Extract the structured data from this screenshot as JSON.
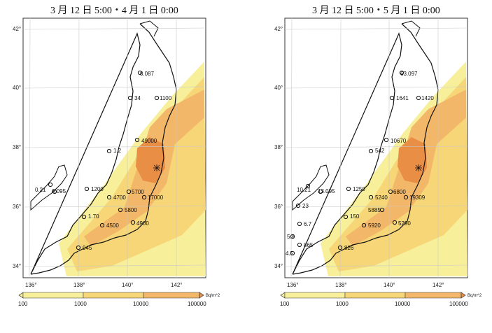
{
  "colors": {
    "c100": "#f7ef9a",
    "c1000": "#f6d677",
    "c10000": "#f2b768",
    "c100000": "#e98e45",
    "land": "#ffffff",
    "outline": "#111111",
    "grid": "#c9c9c9",
    "sea": "#ffffff"
  },
  "axes": {
    "lat_labels": [
      "42°",
      "40°",
      "38°",
      "36°",
      "34°"
    ],
    "lon_labels": [
      "136°",
      "138°",
      "140°",
      "142°"
    ]
  },
  "colorbar": {
    "ticks": [
      "100",
      "1000",
      "10000",
      "100000"
    ],
    "unit": "Bq/m^2"
  },
  "panels": [
    {
      "title": "3 月 12 日 5:00・4 月 1 日 0:00",
      "sites": [
        "0.087",
        "34",
        "1100",
        "1.2",
        "49000",
        "0.21",
        "0.095",
        "1200",
        "4700",
        "5700",
        "17000",
        "5800",
        "1.70",
        "4500",
        "4900",
        "945"
      ]
    },
    {
      "title": "3 月 12 日 5:00・5 月 1 日 0:00",
      "sites": [
        "63.097",
        "1641",
        "1420",
        "10670",
        "542",
        "10.21",
        "13.095",
        "1250",
        "5240",
        "6800",
        "19309",
        "23",
        "5885",
        "150",
        "6.7",
        "5920",
        "5290",
        "5.8",
        "865",
        "4.5",
        "826"
      ]
    }
  ]
}
